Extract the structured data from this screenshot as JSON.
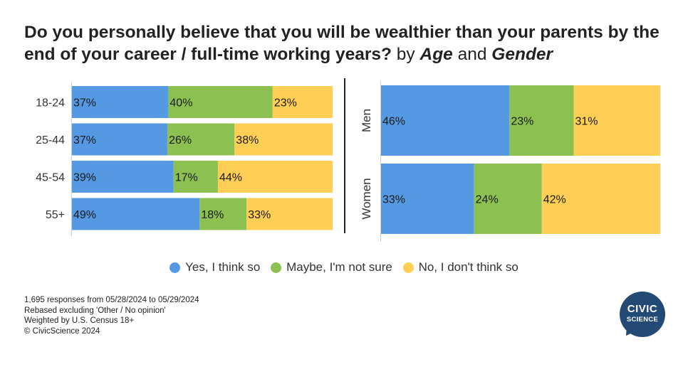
{
  "title": {
    "bold": "Do you personally believe that you will be wealthier than your parents by the end of your career / full-time working years?",
    "by": " by ",
    "group1": "Age",
    "and": " and ",
    "group2": "Gender"
  },
  "colors": {
    "yes": "#5599e3",
    "maybe": "#8cc152",
    "no": "#ffce54"
  },
  "chart_data": [
    {
      "type": "bar",
      "orientation": "horizontal",
      "stacked": true,
      "categories": [
        "18-24",
        "25-44",
        "45-54",
        "55+"
      ],
      "series": [
        {
          "name": "Yes, I think so",
          "values": [
            37,
            37,
            39,
            49
          ]
        },
        {
          "name": "Maybe, I'm not sure",
          "values": [
            40,
            26,
            17,
            18
          ]
        },
        {
          "name": "No, I don't think so",
          "values": [
            23,
            38,
            44,
            33
          ]
        }
      ]
    },
    {
      "type": "bar",
      "orientation": "horizontal",
      "stacked": true,
      "categories": [
        "Men",
        "Women"
      ],
      "series": [
        {
          "name": "Yes, I think so",
          "values": [
            46,
            33
          ]
        },
        {
          "name": "Maybe, I'm not sure",
          "values": [
            23,
            24
          ]
        },
        {
          "name": "No, I don't think so",
          "values": [
            31,
            42
          ]
        }
      ]
    }
  ],
  "legend": {
    "placement": "bottom-center",
    "items": [
      "Yes, I think so",
      "Maybe, I'm not sure",
      "No, I don't think so"
    ]
  },
  "footer": [
    "1,695 responses from 05/28/2024 to 05/29/2024",
    "Rebased excluding 'Other / No opinion'",
    "Weighted by U.S. Census 18+",
    "© CivicScience 2024"
  ],
  "logo": {
    "line1": "CIVIC",
    "line2": "SCIENCE"
  }
}
